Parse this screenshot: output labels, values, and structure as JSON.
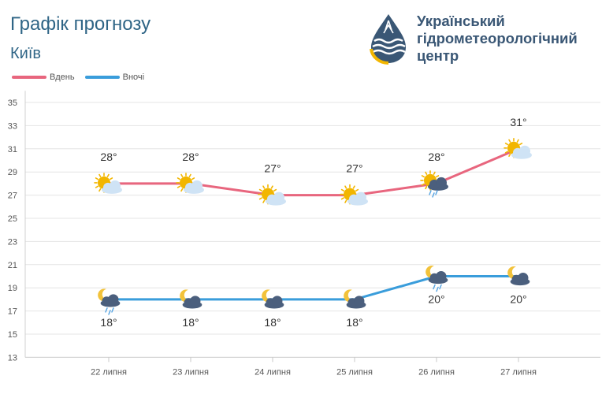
{
  "header": {
    "title": "Графік прогнозу",
    "city": "Київ"
  },
  "logo": {
    "name": "Український\nгідрометеорологічний\nцентр",
    "icon": "water-drop-waves-logo"
  },
  "colors": {
    "day": "#e8667e",
    "night": "#3a9ddb",
    "sun": "#f2b600",
    "cloud": "#cfe3f5",
    "storm_cloud": "#4b5f7d",
    "moon": "#f2c23a",
    "rain": "#5aa6e3"
  },
  "chart_data": {
    "type": "line",
    "categories": [
      "22 липня",
      "23 липня",
      "24 липня",
      "25 липня",
      "26 липня",
      "27 липня"
    ],
    "series": [
      {
        "name": "Вдень",
        "values": [
          28,
          28,
          27,
          27,
          28,
          31
        ],
        "labels": [
          "28°",
          "28°",
          "27°",
          "27°",
          "28°",
          "31°"
        ],
        "icons": [
          "sun-cloud-icon",
          "sun-cloud-icon",
          "sun-cloud-icon",
          "sun-cloud-icon",
          "sun-storm-rain-icon",
          "sun-cloud-icon"
        ]
      },
      {
        "name": "Вночі",
        "values": [
          18,
          18,
          18,
          18,
          20,
          20
        ],
        "labels": [
          "18°",
          "18°",
          "18°",
          "18°",
          "20°",
          "20°"
        ],
        "icons": [
          "moon-storm-rain-icon",
          "moon-storm-icon",
          "moon-storm-icon",
          "moon-storm-icon",
          "moon-storm-rain-icon",
          "moon-storm-icon"
        ]
      }
    ],
    "yticks": [
      "35",
      "33",
      "31",
      "29",
      "27",
      "25",
      "23",
      "21",
      "19",
      "17",
      "15",
      "13"
    ],
    "ylim": [
      13,
      36
    ],
    "grid": true,
    "legend": "top-left"
  }
}
